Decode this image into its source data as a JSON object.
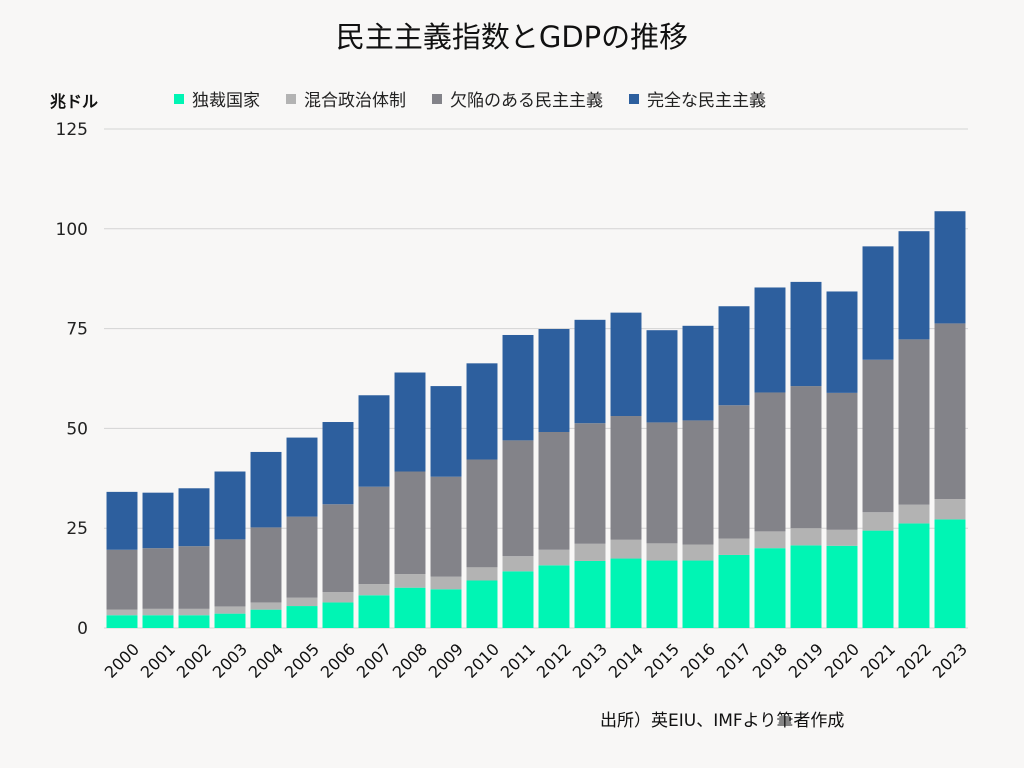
{
  "title": "民主主義指数とGDPの推移",
  "unit_label": "兆ドル",
  "source": "出所）英EIU、IMFより筆者作成",
  "colors": {
    "autocratic": "#00f5b4",
    "hybrid": "#b3b3b3",
    "flawed": "#838389",
    "full": "#2d5f9e",
    "grid": "#d4d4d4",
    "background": "#f8f7f6"
  },
  "legend": [
    {
      "key": "autocratic",
      "label": "独裁国家"
    },
    {
      "key": "hybrid",
      "label": "混合政治体制"
    },
    {
      "key": "flawed",
      "label": "欠陥のある民主主義"
    },
    {
      "key": "full",
      "label": "完全な民主主義"
    }
  ],
  "chart_data": {
    "type": "bar",
    "stacked": true,
    "title": "民主主義指数とGDPの推移",
    "ylabel": "兆ドル",
    "ylim": [
      0,
      125
    ],
    "yticks": [
      0,
      25,
      50,
      75,
      100,
      125
    ],
    "grid": true,
    "legend_position": "top",
    "categories": [
      "2000",
      "2001",
      "2002",
      "2003",
      "2004",
      "2005",
      "2006",
      "2007",
      "2008",
      "2009",
      "2010",
      "2011",
      "2012",
      "2013",
      "2014",
      "2015",
      "2016",
      "2017",
      "2018",
      "2019",
      "2020",
      "2021",
      "2022",
      "2023"
    ],
    "series": [
      {
        "name": "独裁国家",
        "key": "autocratic",
        "values": [
          3.2,
          3.2,
          3.2,
          3.6,
          4.6,
          5.5,
          6.4,
          8.2,
          10.1,
          9.7,
          11.9,
          14.2,
          15.7,
          16.8,
          17.4,
          16.9,
          16.9,
          18.3,
          20.0,
          20.7,
          20.6,
          24.4,
          26.2,
          27.2
        ]
      },
      {
        "name": "混合政治体制",
        "key": "hybrid",
        "values": [
          1.4,
          1.6,
          1.6,
          1.8,
          1.8,
          2.1,
          2.6,
          2.8,
          3.4,
          3.2,
          3.3,
          3.8,
          3.9,
          4.3,
          4.7,
          4.3,
          4.0,
          4.1,
          4.2,
          4.3,
          4.0,
          4.6,
          4.7,
          5.1
        ]
      },
      {
        "name": "欠陥のある民主主義",
        "key": "flawed",
        "values": [
          15.0,
          15.2,
          15.7,
          16.8,
          18.8,
          20.3,
          22.0,
          24.4,
          25.7,
          25.0,
          27.0,
          29.0,
          29.5,
          30.2,
          31.0,
          30.3,
          31.1,
          33.4,
          34.8,
          35.6,
          34.3,
          38.2,
          41.4,
          44.0
        ]
      },
      {
        "name": "完全な民主主義",
        "key": "full",
        "values": [
          14.5,
          13.9,
          14.5,
          17.0,
          18.9,
          19.8,
          20.6,
          22.9,
          24.8,
          22.7,
          24.1,
          26.4,
          25.8,
          25.9,
          25.9,
          23.1,
          23.7,
          24.8,
          26.3,
          26.1,
          25.4,
          28.4,
          27.1,
          28.1
        ]
      }
    ]
  }
}
